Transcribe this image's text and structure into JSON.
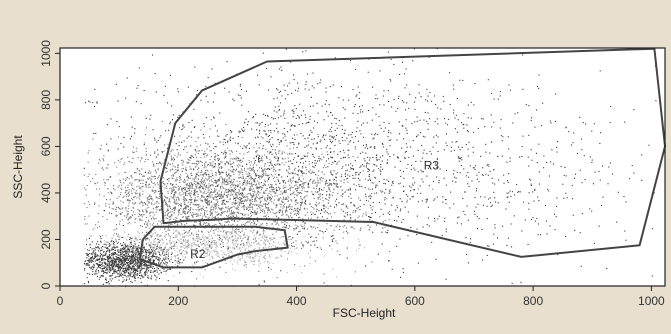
{
  "chart_data": {
    "type": "scatter",
    "xlabel": "FSC-Height",
    "ylabel": "SSC-Height",
    "xlim": [
      0,
      1023
    ],
    "ylim": [
      0,
      1023
    ],
    "x_ticks": [
      0,
      200,
      400,
      600,
      800,
      1000
    ],
    "y_ticks": [
      0,
      200,
      400,
      600,
      800,
      1000
    ],
    "x_tick_labels": [
      "0",
      "200",
      "400",
      "600",
      "800",
      "1000"
    ],
    "y_tick_labels": [
      "0",
      "200",
      "400",
      "600",
      "800",
      "1000"
    ],
    "grid": false,
    "colors": {
      "points_dark": "#3a3a3a",
      "points_mid": "#777777",
      "points_light": "#b8b8b8",
      "gate": "#444444",
      "plot_bg": "#ffffff",
      "page_bg": "#e8dfcf"
    },
    "populations": [
      {
        "center": [
          110,
          110
        ],
        "spread": [
          40,
          40
        ],
        "count": 1400,
        "shade": "dark"
      },
      {
        "center": [
          270,
          380
        ],
        "spread": [
          110,
          110
        ],
        "count": 3000,
        "shade": "mid"
      },
      {
        "center": [
          420,
          560
        ],
        "spread": [
          180,
          200
        ],
        "count": 1400,
        "shade": "dark"
      },
      {
        "center": [
          250,
          170
        ],
        "spread": [
          80,
          45
        ],
        "count": 700,
        "shade": "light"
      },
      {
        "center": [
          650,
          450
        ],
        "spread": [
          220,
          180
        ],
        "count": 500,
        "shade": "dark"
      }
    ],
    "gates": [
      {
        "label": "R2",
        "label_pos": [
          220,
          120
        ],
        "polygon": [
          [
            140,
            200
          ],
          [
            160,
            255
          ],
          [
            330,
            255
          ],
          [
            380,
            240
          ],
          [
            385,
            165
          ],
          [
            330,
            150
          ],
          [
            300,
            135
          ],
          [
            240,
            80
          ],
          [
            175,
            80
          ],
          [
            135,
            115
          ]
        ]
      },
      {
        "label": "R3",
        "label_pos": [
          615,
          500
        ],
        "polygon": [
          [
            175,
            270
          ],
          [
            210,
            280
          ],
          [
            260,
            285
          ],
          [
            290,
            290
          ],
          [
            530,
            275
          ],
          [
            780,
            125
          ],
          [
            980,
            175
          ],
          [
            1023,
            600
          ],
          [
            1005,
            1020
          ],
          [
            350,
            965
          ],
          [
            240,
            840
          ],
          [
            195,
            700
          ],
          [
            170,
            450
          ]
        ]
      }
    ]
  }
}
